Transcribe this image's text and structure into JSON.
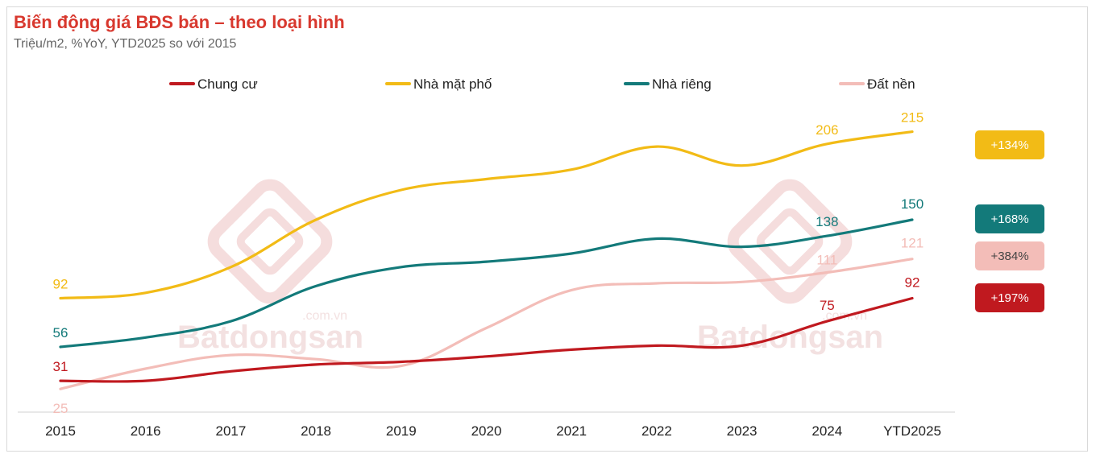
{
  "title": "Biến động giá BĐS bán – theo loại hình",
  "subtitle": "Triệu/m2, %YoY, YTD2025 so với 2015",
  "watermark": {
    "brand": "Batdongsan",
    "domain": ".com.vn"
  },
  "chart_data": {
    "type": "line",
    "title": "Biến động giá BĐS bán – theo loại hình",
    "subtitle": "Triệu/m2, %YoY, YTD2025 so với 2015",
    "xlabel": "",
    "ylabel": "",
    "x": [
      "2015",
      "2016",
      "2017",
      "2018",
      "2019",
      "2020",
      "2021",
      "2022",
      "2023",
      "2024",
      "YTD2025"
    ],
    "ylim": [
      15,
      235
    ],
    "grid": false,
    "legend_position": "top",
    "series": [
      {
        "name": "Chung cư",
        "color": "#c0191f",
        "values": [
          31,
          31,
          38,
          43,
          45,
          49,
          54,
          57,
          57,
          75,
          92
        ],
        "labels": [
          {
            "index": 0,
            "text": "31"
          },
          {
            "index": 9,
            "text": "75"
          },
          {
            "index": 10,
            "text": "92"
          }
        ],
        "change": "+197%",
        "badge_text_color": "#ffffff"
      },
      {
        "name": "Nhà mặt phố",
        "color": "#f2bb16",
        "values": [
          92,
          96,
          115,
          150,
          172,
          180,
          187,
          204,
          190,
          206,
          215
        ],
        "labels": [
          {
            "index": 0,
            "text": "92"
          },
          {
            "index": 9,
            "text": "206"
          },
          {
            "index": 10,
            "text": "215"
          }
        ],
        "change": "+134%",
        "badge_text_color": "#ffffff"
      },
      {
        "name": "Nhà riêng",
        "color": "#137a7a",
        "values": [
          56,
          63,
          75,
          101,
          115,
          119,
          125,
          136,
          130,
          138,
          150
        ],
        "labels": [
          {
            "index": 0,
            "text": "56"
          },
          {
            "index": 9,
            "text": "138"
          },
          {
            "index": 10,
            "text": "150"
          }
        ],
        "change": "+168%",
        "badge_text_color": "#ffffff"
      },
      {
        "name": "Đất  nền",
        "color": "#f3bdb8",
        "values": [
          25,
          40,
          50,
          47,
          42,
          70,
          98,
          103,
          104,
          111,
          121
        ],
        "labels": [
          {
            "index": 0,
            "text": "25"
          },
          {
            "index": 9,
            "text": "111"
          },
          {
            "index": 10,
            "text": "121"
          }
        ],
        "change": "+384%",
        "badge_text_color": "#444444"
      }
    ]
  }
}
